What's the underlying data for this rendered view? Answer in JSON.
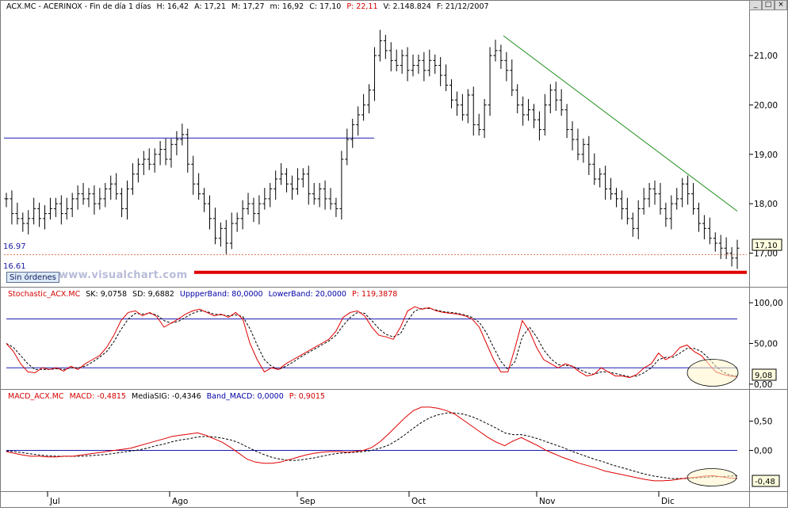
{
  "window": {
    "buttons": [
      "_",
      "□",
      "×"
    ]
  },
  "badges": {
    "sin_ordenes": "Sin órdenes",
    "watermark": "www.visualchart.com"
  },
  "price_panel": {
    "header": {
      "symbol": "ACX.MC - ACERINOX - Fin de día 1 días",
      "open": "H: 16,42",
      "high": "A: 17,21",
      "low": "M: 17,27",
      "min": "m: 16,92",
      "close": "C: 17,10",
      "pct": "P: 22,11",
      "volume": "V: 2.148.824",
      "date": "F: 21/12/2007"
    },
    "line_label_1": "16.97",
    "line_label_2": "16.61",
    "last_value": "17,10"
  },
  "stoch_panel": {
    "header": {
      "name": "Stochastic_ACX.MC",
      "sk": "SK: 9,0758",
      "sd": "SD: 9,6882",
      "upper": "UppperBand: 80,0000",
      "lower": "LowerBand: 20,0000",
      "p": "P: 119,3878"
    },
    "last_value": "9,08"
  },
  "macd_panel": {
    "header": {
      "name": "MACD_ACX.MC",
      "macd": "MACD: -0,4815",
      "signal": "MediaSIG: -0,4346",
      "band": "Band_MACD: 0,0000",
      "p": "P: 0,9015"
    },
    "last_value": "-0,48"
  },
  "chart_data": [
    {
      "type": "ohlc",
      "title": "ACX.MC - ACERINOX",
      "x_labels": [
        "Jul",
        "Ago",
        "Sep",
        "Oct",
        "Nov",
        "Dic"
      ],
      "y_ticks": [
        "21,00",
        "20,00",
        "19,00",
        "18,00",
        "17,00"
      ],
      "ylim": [
        16.35,
        21.9
      ],
      "closes": [
        18.1,
        17.8,
        17.7,
        17.6,
        17.7,
        17.9,
        17.7,
        17.8,
        17.9,
        18.0,
        17.8,
        17.9,
        18.1,
        18.2,
        18.1,
        18.2,
        18.0,
        18.1,
        18.3,
        18.4,
        18.2,
        17.9,
        18.3,
        18.6,
        18.8,
        18.9,
        18.8,
        19.0,
        19.1,
        18.9,
        19.2,
        19.3,
        19.4,
        18.8,
        18.4,
        18.2,
        18.0,
        17.7,
        17.3,
        17.5,
        17.2,
        17.6,
        17.7,
        17.9,
        18.0,
        17.8,
        18.0,
        18.1,
        18.3,
        18.5,
        18.6,
        18.4,
        18.3,
        18.5,
        18.6,
        18.2,
        18.1,
        18.3,
        18.1,
        18.0,
        17.9,
        18.9,
        19.3,
        19.6,
        19.8,
        20.0,
        20.3,
        21.0,
        21.3,
        21.1,
        20.9,
        20.8,
        21.0,
        20.7,
        20.8,
        20.9,
        20.7,
        20.9,
        20.8,
        20.6,
        20.4,
        20.1,
        20.0,
        19.8,
        20.2,
        19.6,
        19.5,
        20.0,
        21.0,
        21.1,
        20.9,
        20.7,
        20.3,
        20.0,
        19.8,
        19.9,
        19.7,
        19.5,
        20.0,
        20.3,
        20.1,
        19.9,
        19.5,
        19.3,
        19.0,
        19.2,
        18.8,
        18.5,
        18.6,
        18.3,
        18.2,
        18.1,
        17.9,
        17.7,
        17.5,
        17.9,
        18.1,
        18.3,
        18.2,
        17.9,
        17.7,
        18.0,
        18.1,
        18.4,
        18.2,
        17.9,
        17.6,
        17.5,
        17.3,
        17.2,
        17.1,
        17.0,
        16.9,
        17.1
      ],
      "horizontal_lines": [
        {
          "name": "blue line",
          "value": 19.33
        },
        {
          "name": "dotted level",
          "value": 16.97
        },
        {
          "name": "red support",
          "value": 16.61
        }
      ],
      "trendline": {
        "from": 21.4,
        "to": 17.85
      }
    },
    {
      "type": "line",
      "title": "Stochastic_ACX.MC",
      "y_ticks": [
        "100,00",
        "50,00",
        "0,00"
      ],
      "ylim": [
        -5,
        104
      ],
      "bands": [
        80,
        20
      ],
      "series": [
        {
          "name": "SK",
          "values": [
            50,
            40,
            25,
            15,
            14,
            20,
            18,
            20,
            16,
            22,
            18,
            25,
            30,
            35,
            45,
            60,
            78,
            88,
            90,
            84,
            88,
            83,
            70,
            75,
            80,
            86,
            90,
            92,
            88,
            84,
            86,
            82,
            88,
            80,
            50,
            30,
            15,
            20,
            18,
            25,
            30,
            35,
            40,
            45,
            50,
            55,
            65,
            82,
            88,
            90,
            84,
            70,
            60,
            58,
            55,
            70,
            90,
            95,
            92,
            94,
            90,
            88,
            87,
            86,
            84,
            80,
            70,
            50,
            30,
            15,
            15,
            45,
            78,
            65,
            45,
            30,
            25,
            20,
            25,
            22,
            15,
            10,
            12,
            20,
            15,
            10,
            10,
            8,
            12,
            20,
            25,
            38,
            30,
            35,
            45,
            48,
            40,
            35,
            25,
            15,
            12,
            10,
            9
          ]
        },
        {
          "name": "SD",
          "values": [
            50,
            45,
            35,
            25,
            18,
            18,
            18,
            19,
            18,
            20,
            20,
            22,
            27,
            33,
            40,
            52,
            67,
            80,
            87,
            86,
            87,
            85,
            78,
            75,
            77,
            82,
            87,
            90,
            89,
            86,
            85,
            84,
            85,
            83,
            68,
            48,
            30,
            22,
            18,
            22,
            27,
            33,
            38,
            43,
            48,
            53,
            60,
            72,
            82,
            88,
            87,
            78,
            68,
            61,
            58,
            62,
            78,
            90,
            93,
            93,
            91,
            89,
            88,
            87,
            85,
            82,
            76,
            63,
            45,
            28,
            18,
            28,
            58,
            70,
            58,
            42,
            31,
            24,
            23,
            22,
            18,
            14,
            12,
            15,
            15,
            13,
            11,
            9,
            10,
            14,
            20,
            30,
            33,
            33,
            38,
            44,
            44,
            40,
            32,
            22,
            15,
            11,
            10
          ]
        }
      ]
    },
    {
      "type": "line",
      "title": "MACD_ACX.MC",
      "y_ticks": [
        "0,50",
        "0,00",
        "-0,48"
      ],
      "ylim": [
        -0.67,
        0.82
      ],
      "series": [
        {
          "name": "MACD",
          "values": [
            -0.02,
            -0.05,
            -0.08,
            -0.1,
            -0.1,
            -0.11,
            -0.11,
            -0.1,
            -0.1,
            -0.08,
            -0.06,
            -0.04,
            -0.02,
            0.0,
            0.02,
            0.04,
            0.08,
            0.12,
            0.16,
            0.2,
            0.24,
            0.26,
            0.28,
            0.3,
            0.26,
            0.2,
            0.14,
            0.05,
            -0.05,
            -0.15,
            -0.2,
            -0.22,
            -0.22,
            -0.2,
            -0.16,
            -0.12,
            -0.08,
            -0.05,
            -0.03,
            -0.02,
            -0.02,
            -0.03,
            -0.02,
            0.0,
            0.05,
            0.15,
            0.28,
            0.42,
            0.56,
            0.68,
            0.74,
            0.74,
            0.72,
            0.68,
            0.62,
            0.52,
            0.42,
            0.32,
            0.22,
            0.14,
            0.08,
            0.16,
            0.22,
            0.15,
            0.08,
            0.0,
            -0.06,
            -0.12,
            -0.17,
            -0.22,
            -0.26,
            -0.3,
            -0.35,
            -0.38,
            -0.41,
            -0.44,
            -0.47,
            -0.5,
            -0.52,
            -0.52,
            -0.51,
            -0.49,
            -0.47,
            -0.46,
            -0.44,
            -0.43,
            -0.45,
            -0.47,
            -0.48
          ]
        },
        {
          "name": "MediaSIG",
          "values": [
            -0.01,
            -0.02,
            -0.04,
            -0.06,
            -0.08,
            -0.09,
            -0.1,
            -0.1,
            -0.1,
            -0.1,
            -0.09,
            -0.08,
            -0.07,
            -0.05,
            -0.03,
            -0.01,
            0.01,
            0.04,
            0.08,
            0.11,
            0.15,
            0.18,
            0.2,
            0.23,
            0.24,
            0.23,
            0.21,
            0.18,
            0.13,
            0.06,
            -0.01,
            -0.07,
            -0.12,
            -0.15,
            -0.17,
            -0.17,
            -0.15,
            -0.13,
            -0.1,
            -0.07,
            -0.05,
            -0.04,
            -0.03,
            -0.02,
            0.0,
            0.04,
            0.09,
            0.17,
            0.27,
            0.38,
            0.48,
            0.56,
            0.61,
            0.64,
            0.64,
            0.62,
            0.58,
            0.52,
            0.45,
            0.38,
            0.3,
            0.27,
            0.27,
            0.24,
            0.2,
            0.15,
            0.1,
            0.05,
            -0.01,
            -0.06,
            -0.11,
            -0.16,
            -0.2,
            -0.25,
            -0.29,
            -0.33,
            -0.37,
            -0.41,
            -0.44,
            -0.46,
            -0.48,
            -0.48,
            -0.48,
            -0.47,
            -0.46,
            -0.45,
            -0.45,
            -0.44,
            -0.43
          ]
        }
      ],
      "zero_line": 0
    }
  ]
}
